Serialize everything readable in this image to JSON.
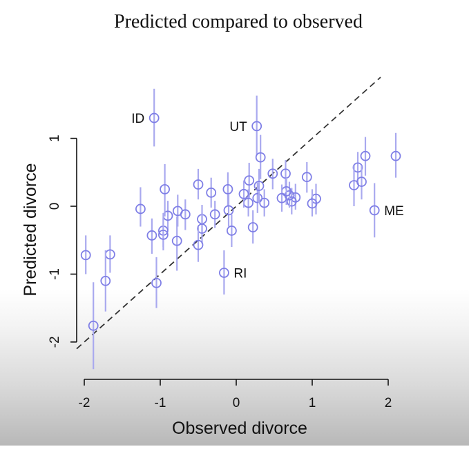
{
  "chart_data": {
    "type": "scatter",
    "title": "Predicted compared to observed",
    "xlabel": "Observed divorce",
    "ylabel": "Predicted divorce",
    "xlim": [
      -2.1,
      2.2
    ],
    "ylim": [
      -2.55,
      1.9
    ],
    "xticks": [
      -2,
      -1,
      0,
      1,
      2
    ],
    "yticks": [
      -2,
      -1,
      0,
      1
    ],
    "grid": false,
    "reference_line": {
      "style": "dashed",
      "slope": 1,
      "intercept": 0
    },
    "point_style": "open circles with vertical interval bars",
    "colors": {
      "points": "#7f7fe6",
      "intervals": "#a9a9ef",
      "reference_line": "#333333",
      "axes": "#111111"
    },
    "points": [
      {
        "x": -1.08,
        "y": 1.3,
        "lo": 0.88,
        "hi": 1.73,
        "label": "ID"
      },
      {
        "x": 0.27,
        "y": 1.18,
        "lo": 0.75,
        "hi": 1.63,
        "label": "UT"
      },
      {
        "x": 0.32,
        "y": 0.72,
        "lo": 0.4,
        "hi": 1.05
      },
      {
        "x": 0.48,
        "y": 0.48,
        "lo": 0.25,
        "hi": 0.7
      },
      {
        "x": 0.65,
        "y": 0.48,
        "lo": 0.25,
        "hi": 0.68
      },
      {
        "x": 0.93,
        "y": 0.43,
        "lo": 0.2,
        "hi": 0.65
      },
      {
        "x": 1.6,
        "y": 0.57,
        "lo": 0.35,
        "hi": 0.8
      },
      {
        "x": 1.7,
        "y": 0.74,
        "lo": 0.45,
        "hi": 1.02
      },
      {
        "x": 2.1,
        "y": 0.74,
        "lo": 0.42,
        "hi": 1.08
      },
      {
        "x": 1.55,
        "y": 0.31,
        "lo": 0.0,
        "hi": 0.6
      },
      {
        "x": 1.65,
        "y": 0.36,
        "lo": 0.1,
        "hi": 0.6
      },
      {
        "x": 1.82,
        "y": -0.06,
        "lo": -0.46,
        "hi": 0.34,
        "label": "ME"
      },
      {
        "x": 1.05,
        "y": 0.11,
        "lo": -0.12,
        "hi": 0.33
      },
      {
        "x": 1.0,
        "y": 0.04,
        "lo": -0.15,
        "hi": 0.25
      },
      {
        "x": 0.78,
        "y": 0.13,
        "lo": -0.05,
        "hi": 0.33
      },
      {
        "x": 0.73,
        "y": 0.07,
        "lo": -0.12,
        "hi": 0.27
      },
      {
        "x": 0.7,
        "y": 0.16,
        "lo": -0.02,
        "hi": 0.36
      },
      {
        "x": 0.66,
        "y": 0.22,
        "lo": 0.02,
        "hi": 0.42
      },
      {
        "x": 0.6,
        "y": 0.12,
        "lo": -0.08,
        "hi": 0.32
      },
      {
        "x": 0.37,
        "y": 0.05,
        "lo": -0.15,
        "hi": 0.25
      },
      {
        "x": 0.28,
        "y": 0.12,
        "lo": -0.1,
        "hi": 0.35
      },
      {
        "x": 0.3,
        "y": 0.3,
        "lo": 0.05,
        "hi": 0.55
      },
      {
        "x": 0.17,
        "y": 0.38,
        "lo": 0.12,
        "hi": 0.64
      },
      {
        "x": 0.16,
        "y": 0.05,
        "lo": -0.15,
        "hi": 0.25
      },
      {
        "x": 0.1,
        "y": 0.18,
        "lo": -0.02,
        "hi": 0.38
      },
      {
        "x": 0.22,
        "y": -0.31,
        "lo": -0.55,
        "hi": -0.06
      },
      {
        "x": -0.11,
        "y": 0.25,
        "lo": 0.0,
        "hi": 0.5
      },
      {
        "x": -0.1,
        "y": -0.06,
        "lo": -0.3,
        "hi": 0.18
      },
      {
        "x": -0.06,
        "y": -0.36,
        "lo": -0.6,
        "hi": -0.12
      },
      {
        "x": -0.33,
        "y": 0.2,
        "lo": -0.02,
        "hi": 0.42
      },
      {
        "x": -0.28,
        "y": -0.12,
        "lo": -0.32,
        "hi": 0.08
      },
      {
        "x": -0.5,
        "y": 0.32,
        "lo": 0.1,
        "hi": 0.55
      },
      {
        "x": -0.45,
        "y": -0.19,
        "lo": -0.4,
        "hi": 0.02
      },
      {
        "x": -0.45,
        "y": -0.33,
        "lo": -0.55,
        "hi": -0.1
      },
      {
        "x": -0.5,
        "y": -0.57,
        "lo": -0.82,
        "hi": -0.3
      },
      {
        "x": -0.16,
        "y": -0.98,
        "lo": -1.3,
        "hi": -0.65,
        "label": "RI"
      },
      {
        "x": -0.67,
        "y": -0.12,
        "lo": -0.35,
        "hi": 0.1
      },
      {
        "x": -0.77,
        "y": -0.07,
        "lo": -0.3,
        "hi": 0.17
      },
      {
        "x": -0.78,
        "y": -0.51,
        "lo": -0.95,
        "hi": -0.15
      },
      {
        "x": -0.9,
        "y": -0.14,
        "lo": -0.35,
        "hi": 0.08
      },
      {
        "x": -0.94,
        "y": 0.25,
        "lo": -0.15,
        "hi": 0.62
      },
      {
        "x": -0.96,
        "y": -0.36,
        "lo": -0.6,
        "hi": -0.1
      },
      {
        "x": -0.96,
        "y": -0.42,
        "lo": -0.65,
        "hi": -0.18
      },
      {
        "x": -1.11,
        "y": -0.43,
        "lo": -0.7,
        "hi": -0.18
      },
      {
        "x": -1.26,
        "y": -0.04,
        "lo": -0.3,
        "hi": 0.28
      },
      {
        "x": -1.05,
        "y": -1.13,
        "lo": -1.5,
        "hi": -0.75
      },
      {
        "x": -1.66,
        "y": -0.71,
        "lo": -0.98,
        "hi": -0.43
      },
      {
        "x": -1.72,
        "y": -1.1,
        "lo": -1.55,
        "hi": -0.65
      },
      {
        "x": -1.88,
        "y": -1.76,
        "lo": -2.4,
        "hi": -1.12
      },
      {
        "x": -1.98,
        "y": -0.72,
        "lo": -1.0,
        "hi": -0.43
      }
    ]
  }
}
